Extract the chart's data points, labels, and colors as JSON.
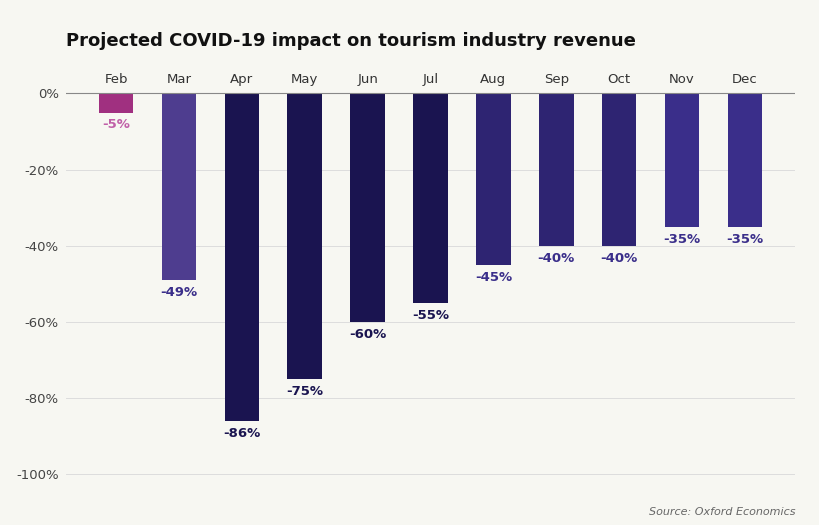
{
  "title": "Projected COVID-19 impact on tourism industry revenue",
  "categories": [
    "Feb",
    "Mar",
    "Apr",
    "May",
    "Jun",
    "Jul",
    "Aug",
    "Sep",
    "Oct",
    "Nov",
    "Dec"
  ],
  "values": [
    -5,
    -49,
    -86,
    -75,
    -60,
    -55,
    -45,
    -40,
    -40,
    -35,
    -35
  ],
  "bar_colors": [
    "#a03080",
    "#4e3d8f",
    "#1a1450",
    "#1a1450",
    "#1a1450",
    "#1a1450",
    "#2e2472",
    "#2e2472",
    "#2e2472",
    "#3a2e8a",
    "#3a2e8a"
  ],
  "label_colors": [
    "#c060a8",
    "#3a2e8a",
    "#1a1450",
    "#1a1450",
    "#1a1450",
    "#1a1450",
    "#3a2e8a",
    "#3a2e8a",
    "#3a2e8a",
    "#3a2e8a",
    "#3a2e8a"
  ],
  "ylim": [
    -105,
    8
  ],
  "yticks": [
    0,
    -20,
    -40,
    -60,
    -80,
    -100
  ],
  "source_text": "Source: Oxford Economics",
  "background_color": "#f7f7f2",
  "grid_color": "#dddddd",
  "title_fontsize": 13,
  "label_fontsize": 9.5,
  "tick_fontsize": 9.5
}
